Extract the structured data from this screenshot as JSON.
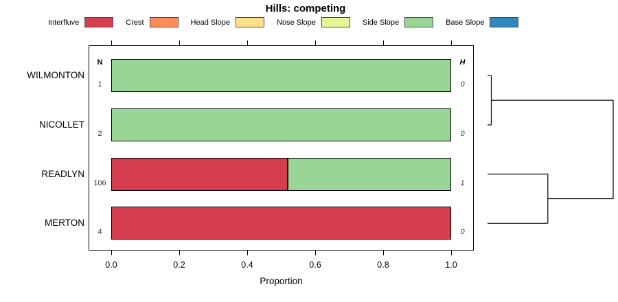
{
  "chart_data": {
    "type": "bar",
    "variant": "stacked-horizontal-proportion",
    "title": "Hills: competing",
    "xlabel": "Proportion",
    "xlim": [
      0,
      1
    ],
    "xtick_labels": [
      "0.0",
      "0.2",
      "0.4",
      "0.6",
      "0.8",
      "1.0"
    ],
    "xtick_values": [
      0,
      0.2,
      0.4,
      0.6,
      0.8,
      1.0
    ],
    "grid": false,
    "legend_position": "top",
    "legend": [
      {
        "label": "Interfluve",
        "color": "#D53E4F"
      },
      {
        "label": "Crest",
        "color": "#FC8D59"
      },
      {
        "label": "Head Slope",
        "color": "#FEE08B"
      },
      {
        "label": "Nose Slope",
        "color": "#E6F598"
      },
      {
        "label": "Side Slope",
        "color": "#99D594"
      },
      {
        "label": "Base Slope",
        "color": "#3288BD"
      }
    ],
    "n_column_header": "N",
    "h_column_header": "H",
    "rows": [
      {
        "label": "WILMONTON",
        "n": "1",
        "h": "0",
        "segments": [
          {
            "category": "Side Slope",
            "value": 1.0
          }
        ]
      },
      {
        "label": "NICOLLET",
        "n": "2",
        "h": "0",
        "segments": [
          {
            "category": "Side Slope",
            "value": 1.0
          }
        ]
      },
      {
        "label": "READLYN",
        "n": "106",
        "h": "1",
        "segments": [
          {
            "category": "Interfluve",
            "value": 0.52
          },
          {
            "category": "Side Slope",
            "value": 0.48
          }
        ]
      },
      {
        "label": "MERTON",
        "n": "4",
        "h": "0",
        "segments": [
          {
            "category": "Interfluve",
            "value": 1.0
          }
        ]
      }
    ],
    "dendrogram": {
      "merges": [
        {
          "a": "WILMONTON",
          "b": "NICOLLET",
          "height": 0.03
        },
        {
          "a": "READLYN",
          "b": "MERTON",
          "height": 0.48
        },
        {
          "a": "node0",
          "b": "node1",
          "height": 1.0
        }
      ]
    },
    "axis_color": "#000000",
    "bar_border_color": "#000000",
    "background": "#FFFFFF"
  }
}
